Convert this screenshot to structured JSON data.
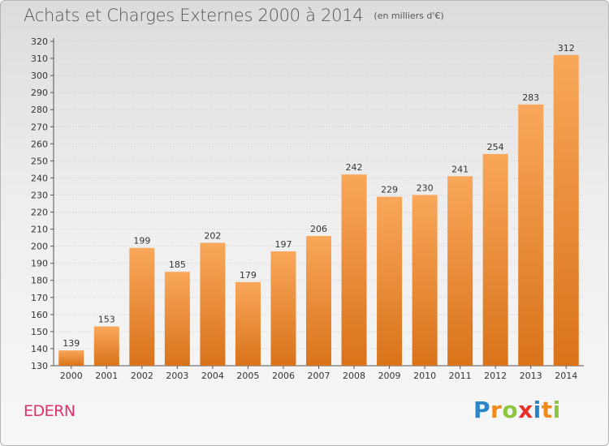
{
  "header": {
    "title": "Achats et Charges Externes 2000 à 2014",
    "unit": "(en milliers d'€)"
  },
  "footer": {
    "location": "EDERN",
    "brand": "Proxiti",
    "brand_letters": [
      {
        "char": "P",
        "color": "#2a86c9"
      },
      {
        "char": "r",
        "color": "#f08a1a"
      },
      {
        "char": "o",
        "color": "#8cc63f"
      },
      {
        "char": "x",
        "color": "#e8302a"
      },
      {
        "char": "i",
        "color": "#2a86c9"
      },
      {
        "char": "t",
        "color": "#f08a1a"
      },
      {
        "char": "i",
        "color": "#8cc63f"
      }
    ]
  },
  "colors": {
    "bar_top": "#f9a75a",
    "bar_bottom": "#d9731a",
    "location": "#e0306a",
    "grid": "#cfcfcf"
  },
  "chart_data": {
    "type": "bar",
    "categories": [
      "2000",
      "2001",
      "2002",
      "2003",
      "2004",
      "2005",
      "2006",
      "2007",
      "2008",
      "2009",
      "2010",
      "2011",
      "2012",
      "2013",
      "2014"
    ],
    "values": [
      139,
      153,
      199,
      185,
      202,
      179,
      197,
      206,
      242,
      229,
      230,
      241,
      254,
      283,
      312
    ],
    "title": "Achats et Charges Externes 2000 à 2014",
    "subtitle": "(en milliers d'€)",
    "ylim": [
      130,
      320
    ],
    "yticks": [
      130,
      140,
      150,
      160,
      170,
      180,
      190,
      200,
      210,
      220,
      230,
      240,
      250,
      260,
      270,
      280,
      290,
      300,
      310,
      320
    ],
    "grid": true,
    "data_labels": true
  }
}
